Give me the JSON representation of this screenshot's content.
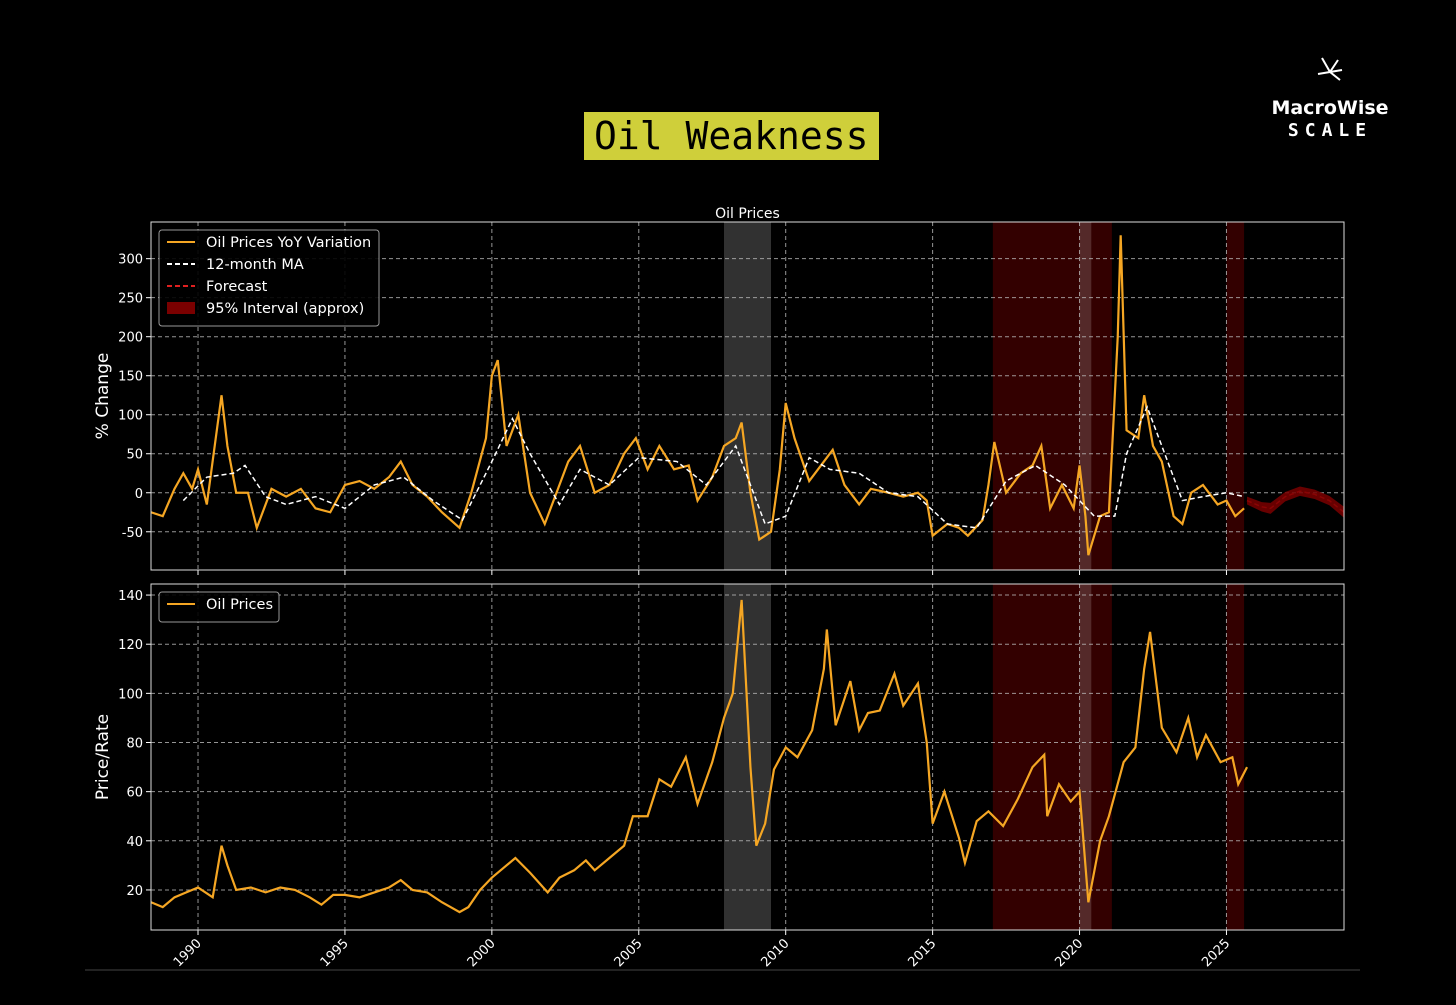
{
  "title": "Oil Weakness",
  "logo": {
    "name": "MacroWise",
    "tagline": "SCALE"
  },
  "chart_data": [
    {
      "type": "line",
      "subtitle": "Oil Prices",
      "ylabel": "% Change",
      "xlim": [
        1988.4,
        2029.0
      ],
      "ylim": [
        -99,
        347
      ],
      "xticks": [
        1990,
        1995,
        2000,
        2005,
        2010,
        2015,
        2020,
        2025
      ],
      "show_xtick_labels": false,
      "yticks": [
        -50,
        0,
        50,
        100,
        150,
        200,
        250,
        300
      ],
      "grid": true,
      "legend": "upper left",
      "shaded_periods": [
        {
          "start": 2007.9,
          "end": 2009.5,
          "color": "#3a3a3a"
        },
        {
          "start": 2017.05,
          "end": 2021.1,
          "color": "#3c0000"
        },
        {
          "start": 2020.0,
          "end": 2020.4,
          "color": "#5a3030"
        },
        {
          "start": 2025.0,
          "end": 2025.6,
          "color": "#3c0000"
        }
      ],
      "series": [
        {
          "name": "Oil Prices YoY Variation",
          "color": "#f5a623",
          "dash": false,
          "x": [
            1988.4,
            1988.8,
            1989.2,
            1989.5,
            1989.8,
            1990.0,
            1990.3,
            1990.8,
            1991.0,
            1991.3,
            1991.7,
            1992.0,
            1992.5,
            1993.0,
            1993.5,
            1994.0,
            1994.5,
            1995.0,
            1995.5,
            1996.0,
            1996.5,
            1996.9,
            1997.3,
            1997.8,
            1998.3,
            1998.9,
            1999.3,
            1999.8,
            2000.0,
            2000.2,
            2000.5,
            2000.9,
            2001.3,
            2001.8,
            2002.2,
            2002.6,
            2003.0,
            2003.5,
            2004.0,
            2004.5,
            2004.9,
            2005.3,
            2005.7,
            2006.2,
            2006.7,
            2007.0,
            2007.5,
            2007.9,
            2008.3,
            2008.5,
            2008.8,
            2009.1,
            2009.5,
            2009.8,
            2010.0,
            2010.3,
            2010.8,
            2011.3,
            2011.6,
            2012.0,
            2012.5,
            2012.9,
            2013.5,
            2014.0,
            2014.5,
            2014.8,
            2015.0,
            2015.5,
            2015.9,
            2016.2,
            2016.7,
            2016.9,
            2017.1,
            2017.5,
            2018.0,
            2018.4,
            2018.7,
            2019.0,
            2019.4,
            2019.8,
            2020.0,
            2020.2,
            2020.3,
            2020.7,
            2021.0,
            2021.3,
            2021.4,
            2021.6,
            2022.0,
            2022.2,
            2022.5,
            2022.8,
            2023.2,
            2023.5,
            2023.8,
            2024.2,
            2024.7,
            2025.0,
            2025.3,
            2025.6
          ],
          "values": [
            -25,
            -30,
            5,
            25,
            5,
            30,
            -15,
            125,
            60,
            0,
            0,
            -45,
            5,
            -5,
            5,
            -20,
            -25,
            10,
            15,
            5,
            20,
            40,
            10,
            -5,
            -25,
            -45,
            0,
            70,
            150,
            170,
            60,
            100,
            0,
            -40,
            0,
            40,
            60,
            0,
            10,
            50,
            70,
            30,
            60,
            30,
            35,
            -10,
            20,
            60,
            70,
            90,
            0,
            -60,
            -50,
            30,
            115,
            70,
            15,
            40,
            55,
            10,
            -15,
            5,
            0,
            -5,
            0,
            -10,
            -55,
            -40,
            -45,
            -55,
            -35,
            10,
            65,
            0,
            25,
            35,
            60,
            -20,
            10,
            -20,
            35,
            -30,
            -80,
            -30,
            -25,
            200,
            330,
            80,
            70,
            125,
            60,
            40,
            -30,
            -40,
            0,
            10,
            -15,
            -10,
            -30,
            -20
          ]
        },
        {
          "name": "12-month MA",
          "color": "#ffffff",
          "dash": true,
          "x": [
            1989.5,
            1990.3,
            1991.2,
            1991.6,
            1992.3,
            1993.0,
            1994.0,
            1995.0,
            1996.0,
            1997.0,
            1998.0,
            1999.0,
            2000.0,
            2000.7,
            2001.3,
            2002.3,
            2003.0,
            2004.0,
            2005.0,
            2006.3,
            2007.3,
            2008.3,
            2009.3,
            2010.0,
            2010.8,
            2011.5,
            2012.5,
            2013.5,
            2014.5,
            2015.5,
            2016.5,
            2017.5,
            2018.5,
            2019.5,
            2020.5,
            2021.2,
            2021.6,
            2022.3,
            2022.8,
            2023.5,
            2024.2,
            2025.0,
            2025.6
          ],
          "values": [
            -10,
            20,
            25,
            35,
            -5,
            -15,
            -5,
            -20,
            10,
            20,
            -10,
            -35,
            40,
            95,
            50,
            -15,
            30,
            10,
            45,
            40,
            10,
            60,
            -40,
            -30,
            45,
            30,
            25,
            0,
            -5,
            -40,
            -45,
            15,
            35,
            10,
            -30,
            -30,
            50,
            110,
            60,
            -10,
            -5,
            0,
            -5
          ]
        },
        {
          "name": "Forecast",
          "color": "#e02020",
          "dash": true,
          "x": [
            2025.7,
            2026.2,
            2026.5,
            2027.0,
            2027.5,
            2028.0,
            2028.5,
            2029.0
          ],
          "values": [
            -10,
            -18,
            -20,
            -5,
            2,
            -2,
            -10,
            -25
          ]
        },
        {
          "name": "95% Interval (approx)",
          "color": "#7a0000",
          "band": true,
          "x": [
            2025.7,
            2026.2,
            2026.5,
            2027.0,
            2027.5,
            2028.0,
            2028.5,
            2029.0
          ],
          "lower": [
            -15,
            -24,
            -27,
            -11,
            -4,
            -8,
            -16,
            -32
          ],
          "upper": [
            -5,
            -12,
            -13,
            1,
            8,
            4,
            -4,
            -18
          ]
        }
      ]
    },
    {
      "type": "line",
      "ylabel": "Price/Rate",
      "xlim": [
        1988.4,
        2029.0
      ],
      "ylim": [
        3.7,
        144.5
      ],
      "xticks": [
        1990,
        1995,
        2000,
        2005,
        2010,
        2015,
        2020,
        2025
      ],
      "show_xtick_labels": true,
      "yticks": [
        20,
        40,
        60,
        80,
        100,
        120,
        140
      ],
      "grid": true,
      "legend": "upper left",
      "shaded_periods": [
        {
          "start": 2007.9,
          "end": 2009.5,
          "color": "#3a3a3a"
        },
        {
          "start": 2017.05,
          "end": 2021.1,
          "color": "#3c0000"
        },
        {
          "start": 2020.0,
          "end": 2020.4,
          "color": "#5a3030"
        },
        {
          "start": 2025.0,
          "end": 2025.6,
          "color": "#3c0000"
        }
      ],
      "series": [
        {
          "name": "Oil Prices",
          "color": "#f5a623",
          "dash": false,
          "x": [
            1988.4,
            1988.8,
            1989.2,
            1989.6,
            1990.0,
            1990.5,
            1990.8,
            1991.0,
            1991.3,
            1991.8,
            1992.3,
            1992.8,
            1993.3,
            1993.8,
            1994.2,
            1994.6,
            1995.0,
            1995.5,
            1996.0,
            1996.5,
            1996.9,
            1997.3,
            1997.8,
            1998.3,
            1998.9,
            1999.2,
            1999.6,
            2000.0,
            2000.4,
            2000.8,
            2001.3,
            2001.9,
            2002.3,
            2002.8,
            2003.2,
            2003.5,
            2004.0,
            2004.5,
            2004.8,
            2005.3,
            2005.7,
            2006.1,
            2006.6,
            2007.0,
            2007.5,
            2007.9,
            2008.2,
            2008.5,
            2008.8,
            2009.0,
            2009.3,
            2009.6,
            2010.0,
            2010.4,
            2010.9,
            2011.3,
            2011.4,
            2011.7,
            2012.2,
            2012.5,
            2012.8,
            2013.2,
            2013.7,
            2014.0,
            2014.5,
            2014.8,
            2015.0,
            2015.4,
            2015.9,
            2016.1,
            2016.5,
            2016.9,
            2017.4,
            2017.9,
            2018.4,
            2018.8,
            2018.9,
            2019.3,
            2019.7,
            2020.0,
            2020.2,
            2020.3,
            2020.7,
            2021.0,
            2021.5,
            2021.9,
            2022.2,
            2022.4,
            2022.8,
            2023.3,
            2023.7,
            2024.0,
            2024.3,
            2024.8,
            2025.2,
            2025.4,
            2025.7
          ],
          "values": [
            15,
            13,
            17,
            19,
            21,
            17,
            38,
            30,
            20,
            21,
            19,
            21,
            20,
            17,
            14,
            18,
            18,
            17,
            19,
            21,
            24,
            20,
            19,
            15,
            11,
            13,
            20,
            25,
            29,
            33,
            27,
            19,
            25,
            28,
            32,
            28,
            33,
            38,
            50,
            50,
            65,
            62,
            74,
            55,
            72,
            90,
            100,
            138,
            70,
            38,
            47,
            69,
            78,
            74,
            85,
            110,
            126,
            87,
            105,
            85,
            92,
            93,
            108,
            95,
            104,
            80,
            47,
            60,
            41,
            31,
            48,
            52,
            46,
            57,
            70,
            75,
            50,
            63,
            56,
            60,
            30,
            15,
            40,
            50,
            72,
            78,
            110,
            125,
            86,
            76,
            90,
            74,
            83,
            72,
            74,
            63,
            70
          ]
        }
      ]
    }
  ]
}
